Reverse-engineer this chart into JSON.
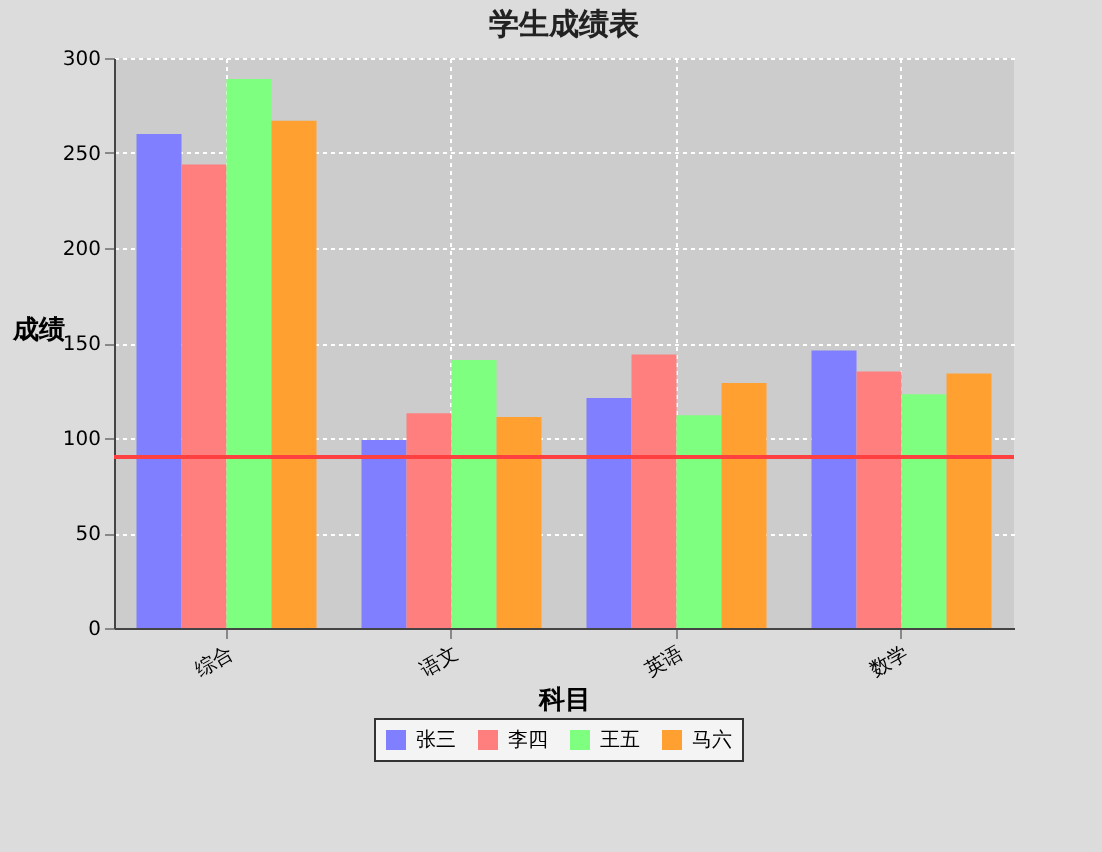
{
  "chart_data": {
    "type": "bar",
    "title": "学生成绩表",
    "xlabel": "科目",
    "ylabel": "成绩",
    "categories": [
      "综合",
      "语文",
      "英语",
      "数学"
    ],
    "series": [
      {
        "name": "张三",
        "color": "#7f7fff",
        "values": [
          260,
          99,
          121,
          146
        ]
      },
      {
        "name": "李四",
        "color": "#ff7f7f",
        "values": [
          244,
          113,
          144,
          135
        ]
      },
      {
        "name": "王五",
        "color": "#7fff7f",
        "values": [
          289,
          141,
          112,
          123
        ]
      },
      {
        "name": "马六",
        "color": "#ffa030",
        "values": [
          267,
          111,
          129,
          134
        ]
      }
    ],
    "ylim": [
      0,
      300
    ],
    "yticks": [
      0,
      50,
      100,
      150,
      200,
      250,
      300
    ],
    "ref_lines": [
      {
        "axis": "y",
        "value": 90,
        "color": "#ff4040"
      }
    ],
    "grid": true,
    "legend": "bottom"
  }
}
